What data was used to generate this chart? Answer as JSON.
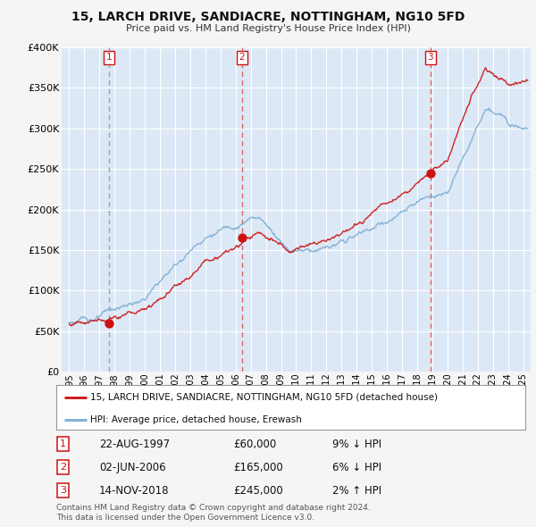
{
  "title": "15, LARCH DRIVE, SANDIACRE, NOTTINGHAM, NG10 5FD",
  "subtitle": "Price paid vs. HM Land Registry's House Price Index (HPI)",
  "hpi_label": "HPI: Average price, detached house, Erewash",
  "property_label": "15, LARCH DRIVE, SANDIACRE, NOTTINGHAM, NG10 5FD (detached house)",
  "footer1": "Contains HM Land Registry data © Crown copyright and database right 2024.",
  "footer2": "This data is licensed under the Open Government Licence v3.0.",
  "ylim": [
    0,
    400000
  ],
  "yticks": [
    0,
    50000,
    100000,
    150000,
    200000,
    250000,
    300000,
    350000,
    400000
  ],
  "xlim": [
    1994.5,
    2025.5
  ],
  "transactions": [
    {
      "date": "22-AUG-1997",
      "price": 60000,
      "rel": "9% ↓ HPI",
      "year": 1997.64,
      "label": "1",
      "dash_gray": true
    },
    {
      "date": "02-JUN-2006",
      "price": 165000,
      "rel": "6% ↓ HPI",
      "year": 2006.42,
      "label": "2",
      "dash_gray": false
    },
    {
      "date": "14-NOV-2018",
      "price": 245000,
      "rel": "2% ↑ HPI",
      "year": 2018.87,
      "label": "3",
      "dash_gray": false
    }
  ],
  "hpi_color": "#7aaed6",
  "property_color": "#cc1111",
  "dashed_red_color": "#e05555",
  "dashed_gray_color": "#999999",
  "bg_color": "#dce8f5",
  "plot_bg": "#dce8f5",
  "grid_color": "#ffffff",
  "legend_bg": "#ffffff"
}
